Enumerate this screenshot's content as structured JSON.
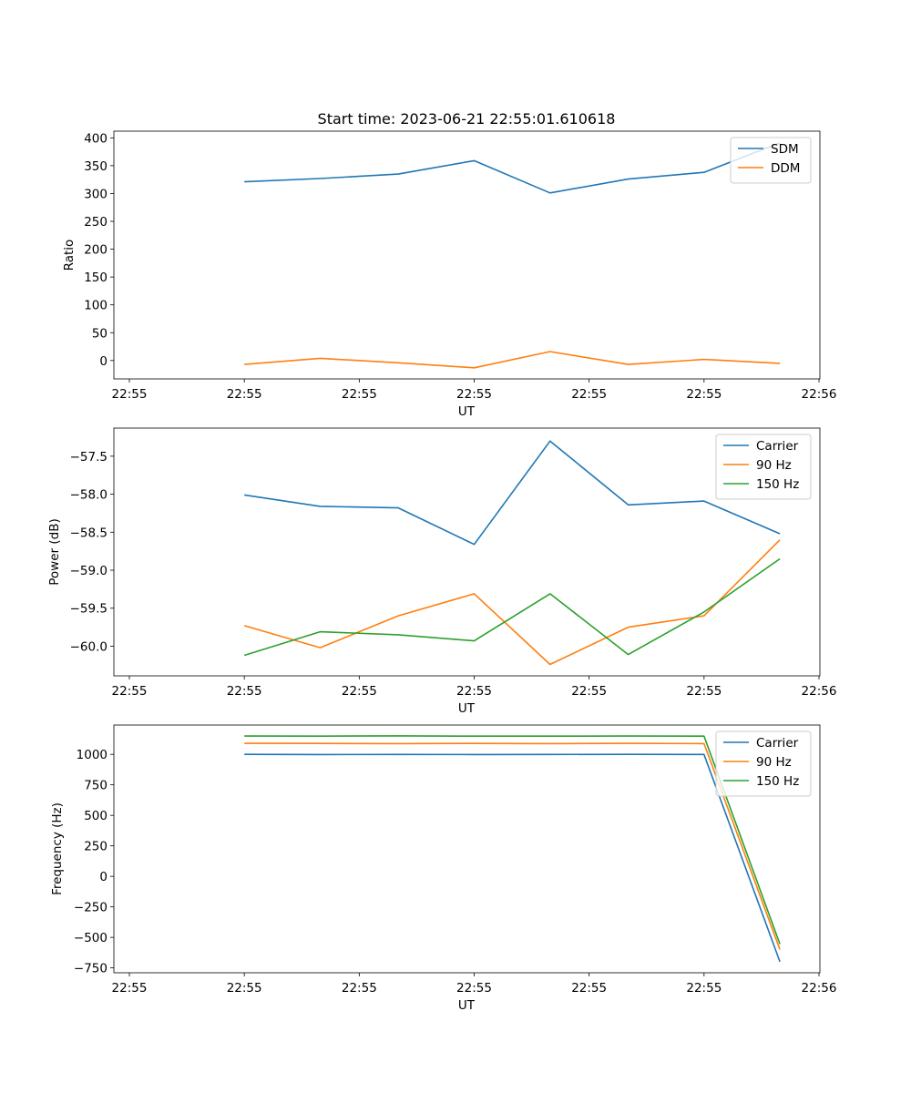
{
  "figure": {
    "title": "Start time: 2023-06-21 22:55:01.610618",
    "xtick_labels": [
      "22:55",
      "22:55",
      "22:55",
      "22:55",
      "22:55",
      "22:55",
      "22:56"
    ]
  },
  "chart_data": [
    {
      "type": "line",
      "xlabel": "UT",
      "ylabel": "Ratio",
      "ylim": [
        -33,
        412
      ],
      "yticks": [
        0,
        50,
        100,
        150,
        200,
        250,
        300,
        350,
        400
      ],
      "legend_position": "top-right",
      "x": [
        1.0,
        1.66,
        2.34,
        3.0,
        3.66,
        4.34,
        5.0,
        5.66
      ],
      "series": [
        {
          "name": "SDM",
          "color": "#1f77b4",
          "values": [
            321,
            327,
            335,
            359,
            301,
            326,
            338,
            391
          ]
        },
        {
          "name": "DDM",
          "color": "#ff7f0e",
          "values": [
            -7,
            4,
            -4,
            -13,
            16,
            -7,
            2,
            -5
          ]
        }
      ]
    },
    {
      "type": "line",
      "xlabel": "UT",
      "ylabel": "Power (dB)",
      "ylim": [
        -60.39,
        -57.13
      ],
      "yticks": [
        -60.0,
        -59.5,
        -59.0,
        -58.5,
        -58.0,
        -57.5
      ],
      "legend_position": "top-right",
      "x": [
        1.0,
        1.66,
        2.34,
        3.0,
        3.66,
        4.34,
        5.0,
        5.66
      ],
      "series": [
        {
          "name": "Carrier",
          "color": "#1f77b4",
          "values": [
            -58.01,
            -58.16,
            -58.18,
            -58.66,
            -57.3,
            -58.14,
            -58.09,
            -58.52
          ]
        },
        {
          "name": "90 Hz",
          "color": "#ff7f0e",
          "values": [
            -59.73,
            -60.02,
            -59.6,
            -59.31,
            -60.24,
            -59.75,
            -59.6,
            -58.6
          ]
        },
        {
          "name": "150 Hz",
          "color": "#2ca02c",
          "values": [
            -60.12,
            -59.81,
            -59.85,
            -59.93,
            -59.31,
            -60.11,
            -59.55,
            -58.85
          ]
        }
      ]
    },
    {
      "type": "line",
      "xlabel": "UT",
      "ylabel": "Frequency (Hz)",
      "ylim": [
        -790,
        1240
      ],
      "yticks": [
        -750,
        -500,
        -250,
        0,
        250,
        500,
        750,
        1000
      ],
      "legend_position": "top-right",
      "x": [
        1.0,
        1.66,
        2.34,
        3.0,
        3.66,
        4.34,
        5.0,
        5.66
      ],
      "series": [
        {
          "name": "Carrier",
          "color": "#1f77b4",
          "values": [
            1000,
            998,
            999,
            998,
            999,
            1000,
            999,
            -700
          ]
        },
        {
          "name": "90 Hz",
          "color": "#ff7f0e",
          "values": [
            1090,
            1089,
            1088,
            1089,
            1088,
            1090,
            1088,
            -600
          ]
        },
        {
          "name": "150 Hz",
          "color": "#2ca02c",
          "values": [
            1150,
            1149,
            1151,
            1149,
            1149,
            1150,
            1149,
            -555
          ]
        }
      ]
    }
  ]
}
